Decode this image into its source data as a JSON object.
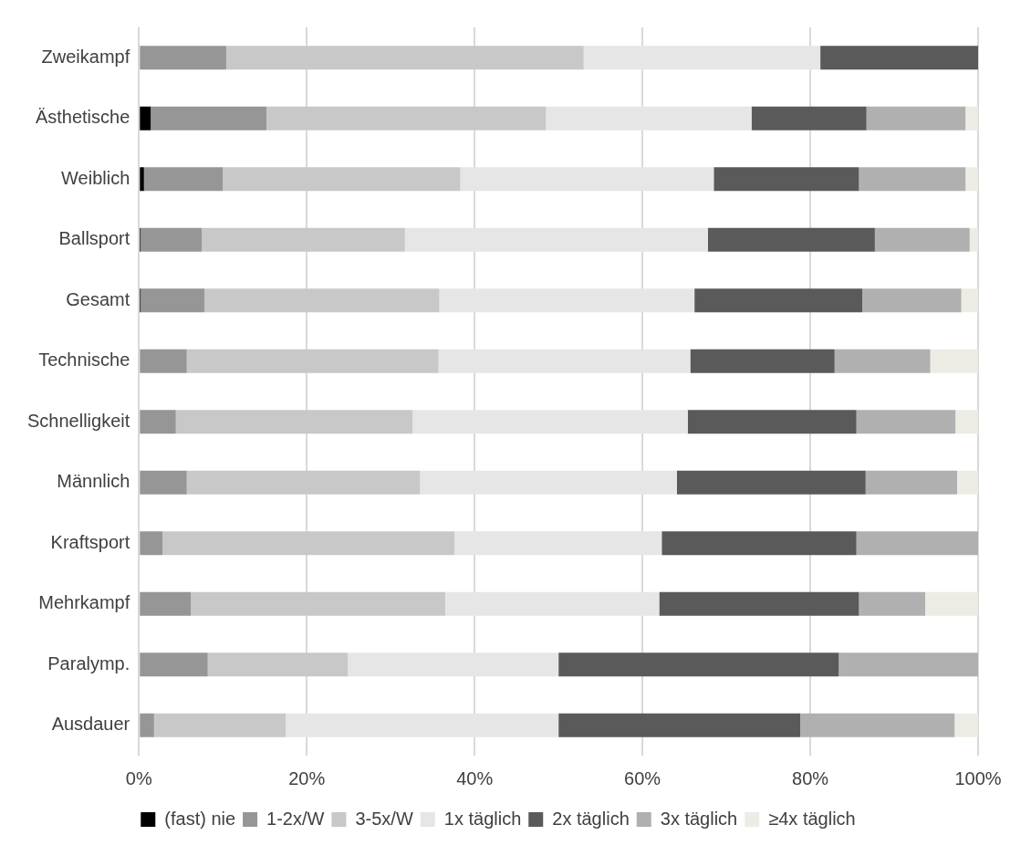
{
  "chart_data": {
    "type": "bar",
    "orientation": "horizontal",
    "stacked": true,
    "categories": [
      "Zweikampf",
      "Ästhetische",
      "Weiblich",
      "Ballsport",
      "Gesamt",
      "Technische",
      "Schnelligkeit",
      "Männlich",
      "Kraftsport",
      "Mehrkampf",
      "Paralymp.",
      "Ausdauer"
    ],
    "series": [
      {
        "name": "(fast) nie",
        "color": "#000000",
        "values": [
          0,
          1.4,
          0.6,
          0.2,
          0.2,
          0,
          0,
          0,
          0,
          0,
          0,
          0
        ]
      },
      {
        "name": "1-2x/W",
        "color": "#969696",
        "values": [
          10.4,
          13.8,
          9.4,
          7.3,
          7.6,
          5.7,
          4.4,
          5.7,
          2.8,
          6.2,
          8.2,
          1.8
        ]
      },
      {
        "name": "3-5x/W",
        "color": "#c8c8c8",
        "values": [
          42.6,
          33.3,
          28.3,
          24.2,
          28.0,
          30.0,
          28.2,
          27.8,
          34.8,
          30.3,
          16.7,
          15.7
        ]
      },
      {
        "name": "1x täglich",
        "color": "#e6e6e6",
        "values": [
          28.2,
          24.5,
          30.2,
          36.1,
          30.4,
          30.0,
          32.8,
          30.6,
          24.7,
          25.5,
          25.1,
          32.5
        ]
      },
      {
        "name": "2x täglich",
        "color": "#5a5a5a",
        "values": [
          18.8,
          13.7,
          17.3,
          19.9,
          20.0,
          17.2,
          20.1,
          22.5,
          23.2,
          23.8,
          33.4,
          28.8
        ]
      },
      {
        "name": "3x täglich",
        "color": "#b0b0b0",
        "values": [
          0,
          11.8,
          12.7,
          11.3,
          11.8,
          11.4,
          11.8,
          10.9,
          14.5,
          7.9,
          16.6,
          18.4
        ]
      },
      {
        "name": "≥4x täglich",
        "color": "#ecece4",
        "values": [
          0,
          1.5,
          1.5,
          1.0,
          2.0,
          5.7,
          2.7,
          2.5,
          0,
          6.3,
          0,
          2.8
        ]
      }
    ],
    "xlim": [
      0,
      100
    ],
    "xticks": [
      {
        "value": 0,
        "label": "0%"
      },
      {
        "value": 20,
        "label": "20%"
      },
      {
        "value": 40,
        "label": "40%"
      },
      {
        "value": 60,
        "label": "60%"
      },
      {
        "value": 80,
        "label": "80%"
      },
      {
        "value": 100,
        "label": "100%"
      }
    ],
    "grid": "x",
    "legend": "bottom"
  }
}
